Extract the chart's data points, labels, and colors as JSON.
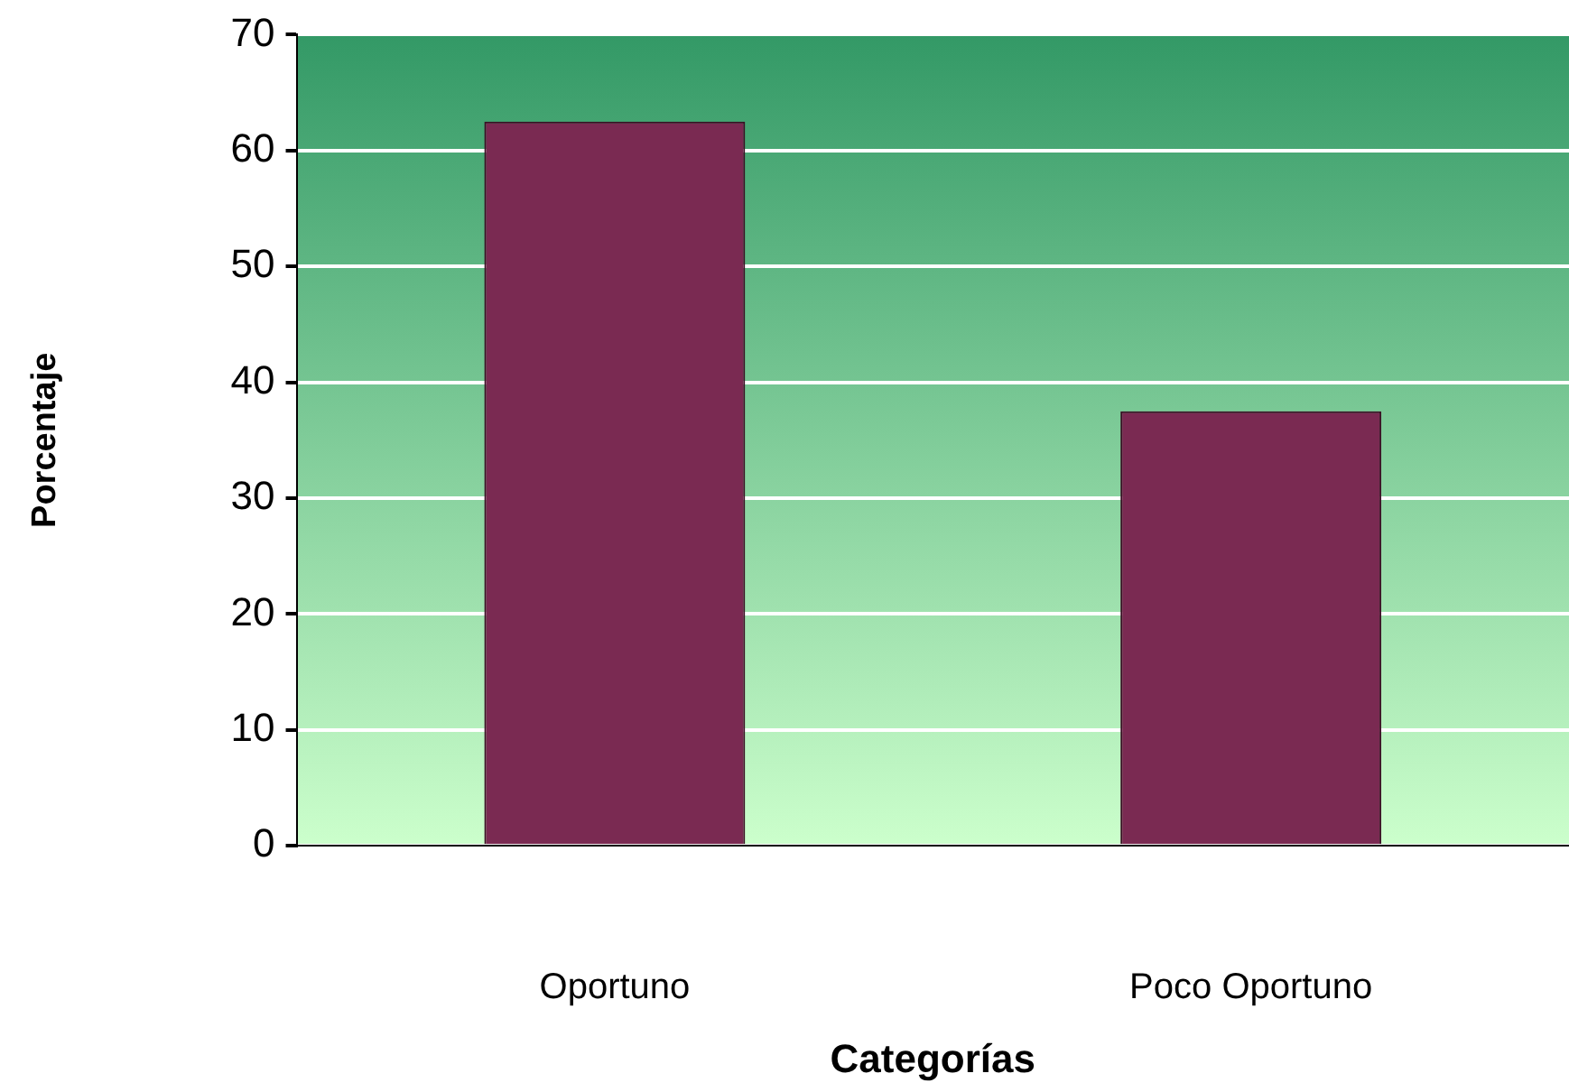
{
  "chart_data": {
    "type": "bar",
    "xlabel": "Categorías",
    "ylabel": "Porcentaje",
    "categories": [
      "Oportuno",
      "Poco Oportuno"
    ],
    "values": [
      62.5,
      37.5
    ],
    "color": "#7a2a52",
    "ylim": [
      0,
      70
    ],
    "yticks": [
      0,
      10,
      20,
      30,
      40,
      50,
      60,
      70
    ],
    "grid": "y",
    "legend": false
  }
}
